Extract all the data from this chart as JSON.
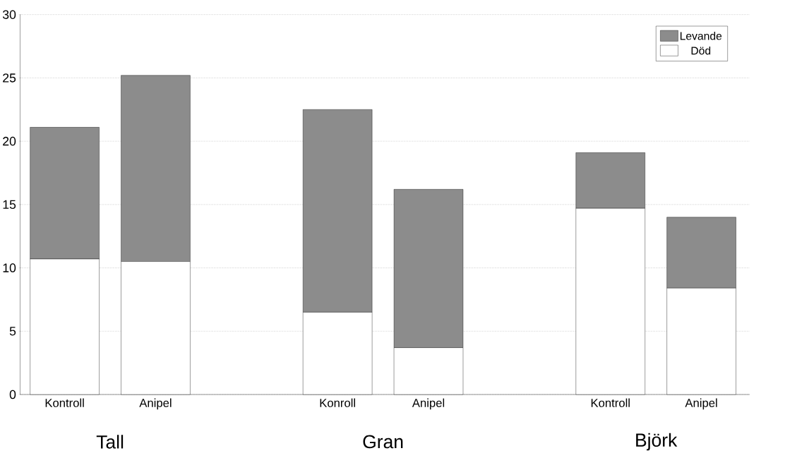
{
  "chart_data": {
    "type": "bar",
    "stacked": true,
    "categories": [
      "Kontroll",
      "Anipel",
      "Konroll",
      "Anipel",
      "Kontroll",
      "Anipel"
    ],
    "series": [
      {
        "name": "Död",
        "color": "#ffffff",
        "values": [
          10.7,
          10.5,
          6.5,
          3.7,
          14.7,
          8.4
        ]
      },
      {
        "name": "Levande",
        "color": "#8c8c8c",
        "values": [
          10.4,
          14.7,
          16.0,
          12.5,
          4.4,
          5.6
        ]
      }
    ],
    "annotations": [
      "Tall",
      "Gran",
      "Björk"
    ],
    "ylim": [
      0,
      30
    ],
    "yticks": [
      0,
      5,
      10,
      15,
      20,
      25,
      30
    ],
    "grid": "y",
    "legend": "top right"
  }
}
